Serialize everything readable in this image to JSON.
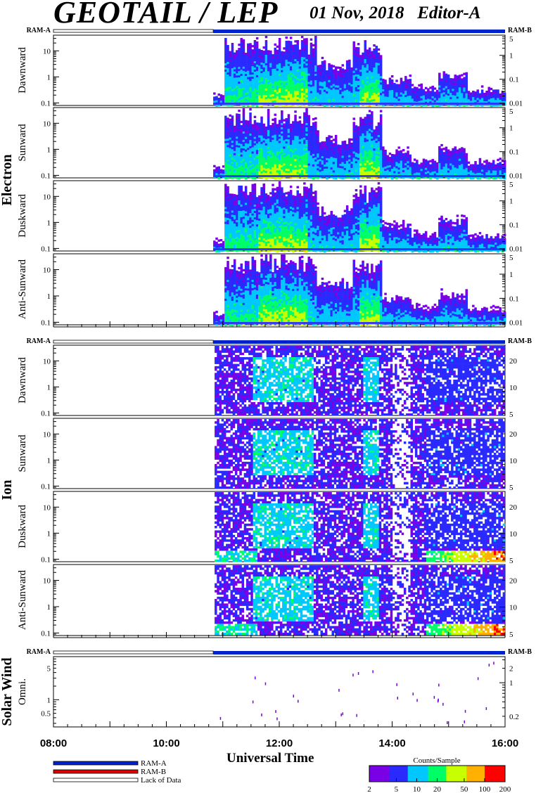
{
  "header": {
    "title": "GEOTAIL / LEP",
    "subtitle": "01 Nov, 2018   Editor-A"
  },
  "chart_data": {
    "type": "heatmap",
    "xlabel": "Universal Time",
    "x_ticks": [
      "08:00",
      "10:00",
      "12:00",
      "14:00",
      "16:00"
    ],
    "x_range_hours": [
      8,
      16
    ],
    "data_start_hour": 10.83,
    "ram_left_label": "RAM-A",
    "ram_right_label": "RAM-B",
    "groups": [
      {
        "name": "Electron",
        "panels": [
          {
            "label": "Dawnward",
            "left_ticks": [
              "10",
              "1",
              "0.1"
            ],
            "right_ticks": [
              "5",
              "1",
              "0.1",
              "0.01"
            ]
          },
          {
            "label": "Sunward",
            "left_ticks": [
              "10",
              "1",
              "0.1"
            ],
            "right_ticks": [
              "5",
              "1",
              "0.1",
              "0.01"
            ]
          },
          {
            "label": "Duskward",
            "left_ticks": [
              "10",
              "1",
              "0.1"
            ],
            "right_ticks": [
              "5",
              "1",
              "0.1",
              "0.01"
            ]
          },
          {
            "label": "Anti-Sunward",
            "left_ticks": [
              "10",
              "1",
              "0.1"
            ],
            "right_ticks": [
              "5",
              "1",
              "0.1",
              "0.01"
            ]
          }
        ]
      },
      {
        "name": "Ion",
        "panels": [
          {
            "label": "Dawnward",
            "left_ticks": [
              "10",
              "1",
              "0.1"
            ],
            "right_ticks": [
              "20",
              "10",
              "5"
            ]
          },
          {
            "label": "Sunward",
            "left_ticks": [
              "10",
              "1",
              "0.1"
            ],
            "right_ticks": [
              "20",
              "10",
              "5"
            ]
          },
          {
            "label": "Duskward",
            "left_ticks": [
              "10",
              "1",
              "0.1"
            ],
            "right_ticks": [
              "20",
              "10",
              "5"
            ]
          },
          {
            "label": "Anti-Sunward",
            "left_ticks": [
              "10",
              "1",
              "0.1"
            ],
            "right_ticks": [
              "20",
              "10",
              "5"
            ]
          }
        ]
      },
      {
        "name": "Solar Wind",
        "panels": [
          {
            "label": "Omni.",
            "left_ticks": [
              "5",
              "1",
              "0.5"
            ],
            "right_ticks": [
              "2",
              "1",
              "0.2"
            ]
          }
        ]
      }
    ],
    "colorbar": {
      "title": "Counts/Sample",
      "ticks": [
        "2",
        "5",
        "10",
        "20",
        "50",
        "100",
        "200"
      ],
      "colors": [
        "#7a00e6",
        "#2a2aff",
        "#00c8ff",
        "#00ff66",
        "#c8ff00",
        "#ffb000",
        "#ff0000"
      ]
    },
    "legend": [
      {
        "label": "RAM-A",
        "color": "#0022cc"
      },
      {
        "label": "RAM-B",
        "color": "#dd0000"
      },
      {
        "label": "Lack of Data",
        "color": "#ffffff"
      }
    ]
  }
}
